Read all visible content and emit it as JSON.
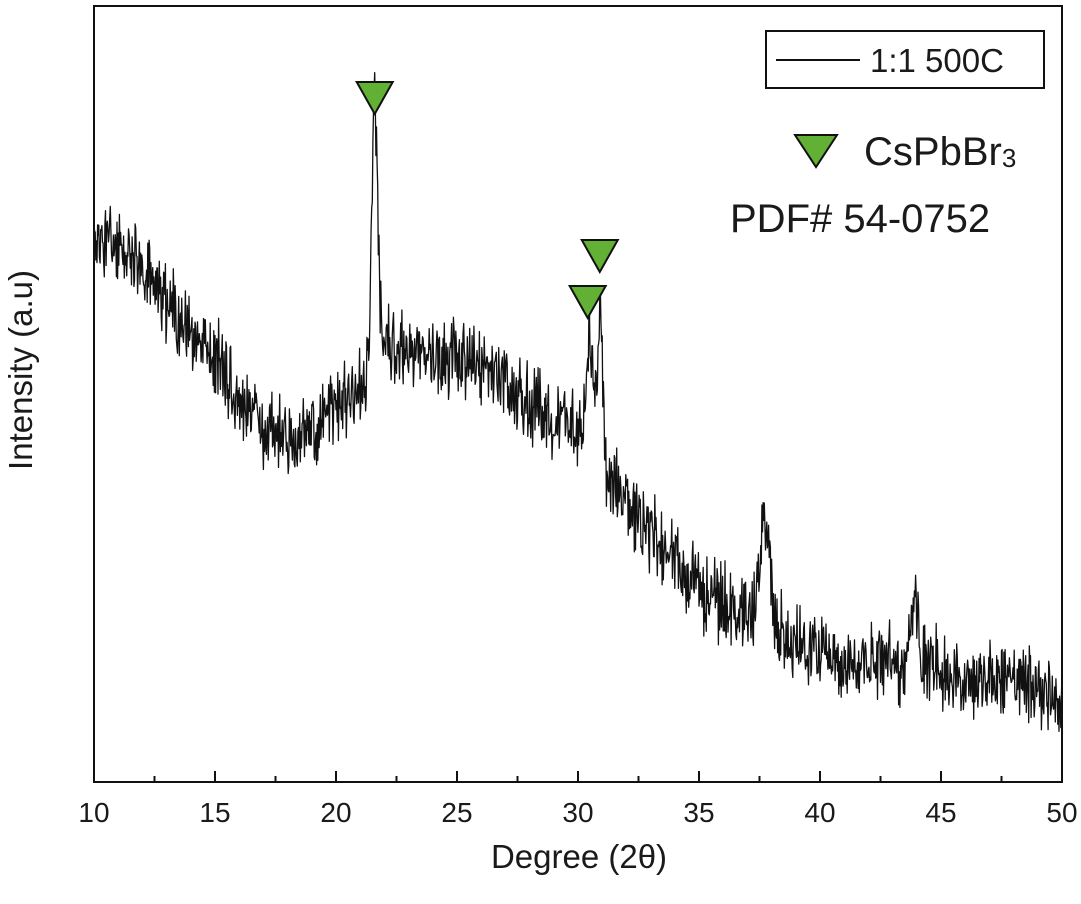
{
  "chart_data": {
    "type": "line",
    "xlabel": "Degree (2θ)",
    "ylabel": "Intensity (a.u)",
    "xlim": [
      10,
      50
    ],
    "ylim": [
      0,
      100
    ],
    "x_ticks": [
      10,
      15,
      20,
      25,
      30,
      35,
      40,
      45,
      50
    ],
    "y_ticks_labeled": false,
    "grid": false,
    "legend": {
      "position": "top-right",
      "entries": [
        "1:1 500C"
      ]
    },
    "series": [
      {
        "name": "1:1 500C",
        "color": "#111111",
        "profile": [
          {
            "x": 10.0,
            "y": 70
          },
          {
            "x": 11.0,
            "y": 69
          },
          {
            "x": 12.0,
            "y": 66
          },
          {
            "x": 13.0,
            "y": 62
          },
          {
            "x": 14.0,
            "y": 58
          },
          {
            "x": 15.0,
            "y": 55
          },
          {
            "x": 16.0,
            "y": 49
          },
          {
            "x": 17.0,
            "y": 46
          },
          {
            "x": 18.0,
            "y": 44
          },
          {
            "x": 19.0,
            "y": 45
          },
          {
            "x": 20.0,
            "y": 48
          },
          {
            "x": 21.0,
            "y": 51
          },
          {
            "x": 22.0,
            "y": 56
          },
          {
            "x": 23.0,
            "y": 56
          },
          {
            "x": 24.0,
            "y": 55
          },
          {
            "x": 25.0,
            "y": 54
          },
          {
            "x": 26.0,
            "y": 53
          },
          {
            "x": 27.0,
            "y": 51
          },
          {
            "x": 28.0,
            "y": 49
          },
          {
            "x": 29.0,
            "y": 47
          },
          {
            "x": 30.0,
            "y": 46
          },
          {
            "x": 31.0,
            "y": 41
          },
          {
            "x": 32.0,
            "y": 36
          },
          {
            "x": 33.0,
            "y": 32
          },
          {
            "x": 34.0,
            "y": 29
          },
          {
            "x": 35.0,
            "y": 25
          },
          {
            "x": 36.0,
            "y": 23
          },
          {
            "x": 37.0,
            "y": 21
          },
          {
            "x": 38.0,
            "y": 20
          },
          {
            "x": 39.0,
            "y": 18
          },
          {
            "x": 40.0,
            "y": 17
          },
          {
            "x": 41.0,
            "y": 16
          },
          {
            "x": 42.0,
            "y": 15.5
          },
          {
            "x": 43.0,
            "y": 15
          },
          {
            "x": 44.0,
            "y": 15
          },
          {
            "x": 45.0,
            "y": 14.5
          },
          {
            "x": 46.0,
            "y": 14
          },
          {
            "x": 47.0,
            "y": 13.5
          },
          {
            "x": 48.0,
            "y": 13
          },
          {
            "x": 49.0,
            "y": 12.5
          },
          {
            "x": 50.0,
            "y": 10
          }
        ],
        "peaks": [
          {
            "x": 21.6,
            "y": 87,
            "width": 0.18
          },
          {
            "x": 30.5,
            "y": 58,
            "width": 0.15
          },
          {
            "x": 30.9,
            "y": 60,
            "width": 0.15
          },
          {
            "x": 37.7,
            "y": 33,
            "width": 0.3
          },
          {
            "x": 43.9,
            "y": 24,
            "width": 0.2
          }
        ],
        "noise_amplitude": 4
      }
    ],
    "markers": [
      {
        "x": 21.6,
        "label": "CsPbBr3",
        "level": "upper"
      },
      {
        "x": 30.4,
        "label": "CsPbBr3",
        "level": "lower"
      },
      {
        "x": 30.9,
        "label": "CsPbBr3",
        "level": "upper"
      }
    ],
    "marker_color": "#62b034",
    "annotations": {
      "phase_prefix": "CsPbBr",
      "phase_subscript": "3",
      "pdf_card": "PDF# 54-0752"
    }
  }
}
